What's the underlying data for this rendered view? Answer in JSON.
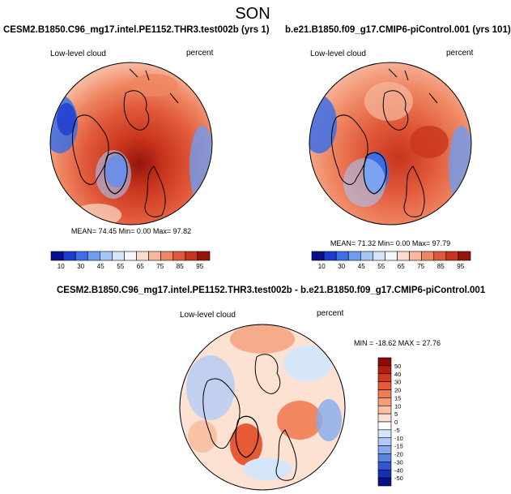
{
  "title": "SON",
  "panels": [
    {
      "id": "left",
      "case": "CESM2.B1850.C96_mg17.intel.PE1152.THR3.test002b (yrs 1)",
      "variable": "Low-level cloud",
      "units": "percent",
      "stats": "MEAN= 74.45  Min=  0.00  Max= 97.82"
    },
    {
      "id": "right",
      "case": "b.e21.B1850.f09_g17.CMIP6-piControl.001 (yrs 101)",
      "variable": "Low-level cloud",
      "units": "percent",
      "stats": "MEAN= 71.32  Min=  0.00  Max= 97.79"
    },
    {
      "id": "diff",
      "case": "CESM2.B1850.C96_mg17.intel.PE1152.THR3.test002b - b.e21.B1850.f09_g17.CMIP6-piControl.001",
      "variable": "Low-level cloud",
      "units": "percent",
      "stats": "MIN = -18.62 MAX =  27.76"
    }
  ],
  "colorbar_main": {
    "labels": [
      "10",
      "30",
      "45",
      "55",
      "65",
      "75",
      "85",
      "95"
    ],
    "colors": [
      "#08108c",
      "#1c3cd0",
      "#3c6ee6",
      "#6e9cf0",
      "#a6c6f6",
      "#d4e4fa",
      "#f4f6fb",
      "#fbdccc",
      "#f7b89e",
      "#ef8662",
      "#e0583a",
      "#c8341c",
      "#96140c"
    ]
  },
  "colorbar_diff": {
    "labels": [
      "50",
      "40",
      "30",
      "20",
      "15",
      "10",
      "5",
      "0",
      "-5",
      "-10",
      "-15",
      "-20",
      "-30",
      "-40",
      "-50"
    ],
    "colors": [
      "#8c0a08",
      "#b41c10",
      "#d2381e",
      "#e65a36",
      "#ef7c52",
      "#f49e78",
      "#f9c2a6",
      "#fde2d4",
      "#ffffff",
      "#d6e6fa",
      "#b0ccf4",
      "#86aaec",
      "#5a84e2",
      "#3058d2",
      "#1430b4",
      "#08108a"
    ]
  }
}
